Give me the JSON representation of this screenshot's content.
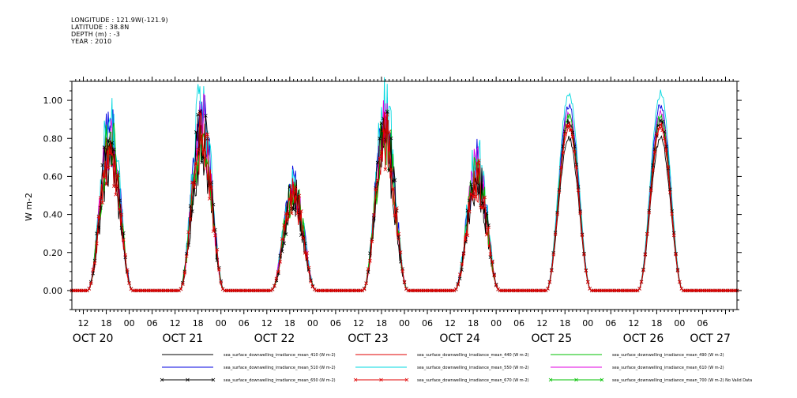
{
  "header": {
    "longitude": "LONGITUDE : 121.9W(-121.9)",
    "latitude": "LATITUDE : 38.8N",
    "depth": "DEPTH (m) : -3",
    "year": "YEAR : 2010"
  },
  "chart_data": {
    "type": "line",
    "title": "",
    "xlabel": "",
    "ylabel": "W m-2",
    "ylim": [
      -0.1,
      1.1
    ],
    "yticks": [
      0.0,
      0.2,
      0.4,
      0.6,
      0.8,
      1.0
    ],
    "ytick_labels": [
      "0.00",
      "0.20",
      "0.40",
      "0.60",
      "0.80",
      "1.00"
    ],
    "x_hour_labels": [
      "12",
      "18",
      "00",
      "06",
      "12",
      "18",
      "00",
      "06",
      "12",
      "18",
      "00",
      "06",
      "12",
      "18",
      "00",
      "06",
      "12",
      "18",
      "00",
      "06",
      "12",
      "18",
      "00",
      "06",
      "12",
      "18",
      "00",
      "06"
    ],
    "x_day_labels": [
      "OCT 20",
      "OCT 21",
      "OCT 22",
      "OCT 23",
      "OCT 24",
      "OCT 25",
      "OCT 26",
      "OCT 27"
    ],
    "xlim_hours": [
      9,
      183
    ],
    "days": [
      {
        "date": "OCT 20",
        "rise_hour": 13,
        "set_hour": 25,
        "peak": 0.75,
        "noisy": true
      },
      {
        "date": "OCT 21",
        "rise_hour": 37,
        "set_hour": 49,
        "peak": 0.82,
        "noisy": true
      },
      {
        "date": "OCT 22",
        "rise_hour": 61,
        "set_hour": 73,
        "peak": 0.5,
        "noisy": true
      },
      {
        "date": "OCT 23",
        "rise_hour": 85,
        "set_hour": 97,
        "peak": 0.8,
        "noisy": true
      },
      {
        "date": "OCT 24",
        "rise_hour": 109,
        "set_hour": 121,
        "peak": 0.6,
        "noisy": true
      },
      {
        "date": "OCT 25",
        "rise_hour": 133,
        "set_hour": 145,
        "peak": 0.92,
        "noisy": false
      },
      {
        "date": "OCT 26",
        "rise_hour": 157,
        "set_hour": 169,
        "peak": 0.92,
        "noisy": false
      }
    ],
    "series": [
      {
        "name": "sea_surface_downwelling_irradiance_mean_410 (W m-2)",
        "color": "#000000",
        "scale": 0.87,
        "marker": "none"
      },
      {
        "name": "sea_surface_downwelling_irradiance_mean_440 (W m-2)",
        "color": "#e00000",
        "scale": 0.93,
        "marker": "none"
      },
      {
        "name": "sea_surface_downwelling_irradiance_mean_490 (W m-2)",
        "color": "#00c000",
        "scale": 1.0,
        "marker": "none"
      },
      {
        "name": "sea_surface_downwelling_irradiance_mean_510 (W m-2)",
        "color": "#0000e0",
        "scale": 1.06,
        "marker": "none"
      },
      {
        "name": "sea_surface_downwelling_irradiance_mean_550 (W m-2)",
        "color": "#00d8e0",
        "scale": 1.13,
        "marker": "none"
      },
      {
        "name": "sea_surface_downwelling_irradiance_mean_610 (W m-2)",
        "color": "#e000e0",
        "scale": 1.02,
        "marker": "none"
      },
      {
        "name": "sea_surface_downwelling_irradiance_mean_650 (W m-2)",
        "color": "#000000",
        "scale": 0.97,
        "marker": "x"
      },
      {
        "name": "sea_surface_downwelling_irradiance_mean_670 (W m-2)",
        "color": "#e00000",
        "scale": 0.95,
        "marker": "x"
      },
      {
        "name": "sea_surface_downwelling_irradiance_mean_700 (W m-2) No Valid Data",
        "color": "#00c000",
        "scale": 0,
        "marker": "x"
      }
    ]
  }
}
